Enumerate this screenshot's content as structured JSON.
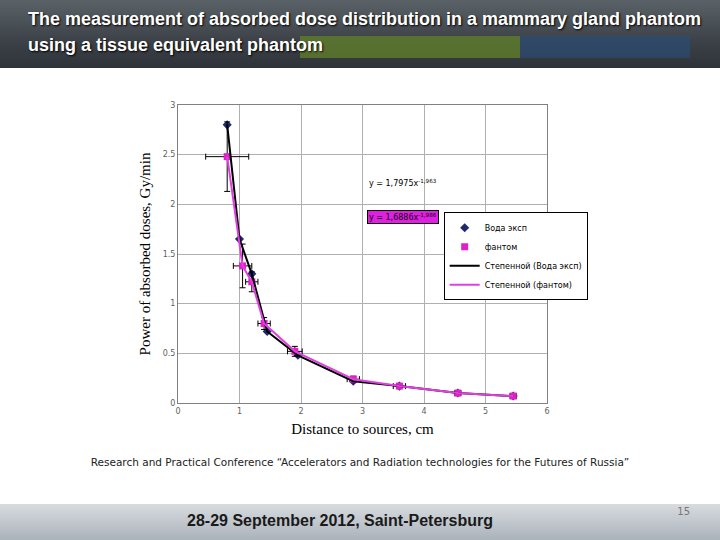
{
  "slide": {
    "title": "The measurement of absorbed dose distribution in a mammary gland phantom using a tissue equivalent phantom",
    "footer": "Research and Practical Conference “Accelerators and Radiation technologies for the Futures of Russia”",
    "date": "28-29 September 2012, Saint-Petersburg",
    "page": 15
  },
  "chart_data": {
    "type": "scatter",
    "x_label": "Distance to sources, cm",
    "y_label": "Power of absorbed doses, Gy/min",
    "xlim": [
      0,
      6
    ],
    "xticks": [
      0,
      1,
      2,
      3,
      4,
      5,
      6
    ],
    "ylim": [
      0,
      3
    ],
    "yticks": [
      0,
      0.5,
      1,
      1.5,
      2,
      2.5,
      3
    ],
    "grid": true,
    "legend": "right",
    "series": [
      {
        "name": "Вода эксп",
        "type": "scatter",
        "color": "#1f2a6b",
        "marker": "diamond",
        "x": [
          0.8,
          1.0,
          1.2,
          1.45,
          1.95,
          2.85,
          3.6,
          4.55,
          5.45
        ],
        "values": [
          2.8,
          1.65,
          1.3,
          0.72,
          0.48,
          0.22,
          0.17,
          0.1,
          0.07
        ]
      },
      {
        "name": "фантом",
        "type": "scatter",
        "color": "#e020c8",
        "marker": "square",
        "x": [
          0.8,
          1.05,
          1.2,
          1.4,
          1.9,
          2.85,
          3.6,
          4.55,
          5.45
        ],
        "values": [
          2.48,
          1.38,
          1.22,
          0.8,
          0.52,
          0.24,
          0.17,
          0.1,
          0.07
        ],
        "x_errors": [
          0.35,
          0.15,
          0.1,
          0.1,
          0.12,
          0.1,
          0.1,
          0.05,
          0.05
        ],
        "y_errors": [
          0.35,
          0.22,
          0.1,
          0.06,
          0.05,
          0.03,
          0.02,
          0.01,
          0.01
        ]
      },
      {
        "name": "Степенной (Вода эксп)",
        "type": "line",
        "color": "#000000",
        "line_style": "solid",
        "x": [
          0.8,
          1.0,
          1.2,
          1.45,
          1.95,
          2.85,
          3.6,
          4.55,
          5.45
        ],
        "values": [
          2.8,
          1.65,
          1.3,
          0.72,
          0.48,
          0.22,
          0.17,
          0.1,
          0.07
        ]
      },
      {
        "name": "Степенной (фантом)",
        "type": "line",
        "color": "#e040e0",
        "line_style": "solid",
        "x": [
          0.8,
          1.05,
          1.2,
          1.4,
          1.9,
          2.85,
          3.6,
          4.55,
          5.45
        ],
        "values": [
          2.48,
          1.38,
          1.22,
          0.8,
          0.52,
          0.24,
          0.17,
          0.1,
          0.07
        ]
      }
    ],
    "annotations": [
      {
        "text": "y = 1,7975x",
        "superscript": "-1,963",
        "x": 3.08,
        "y": 2.21,
        "color": "#000000"
      },
      {
        "text": "y = 1,6886x",
        "superscript": "-1,986",
        "x": 3.08,
        "y": 1.87,
        "color": "#e020e0"
      }
    ]
  }
}
